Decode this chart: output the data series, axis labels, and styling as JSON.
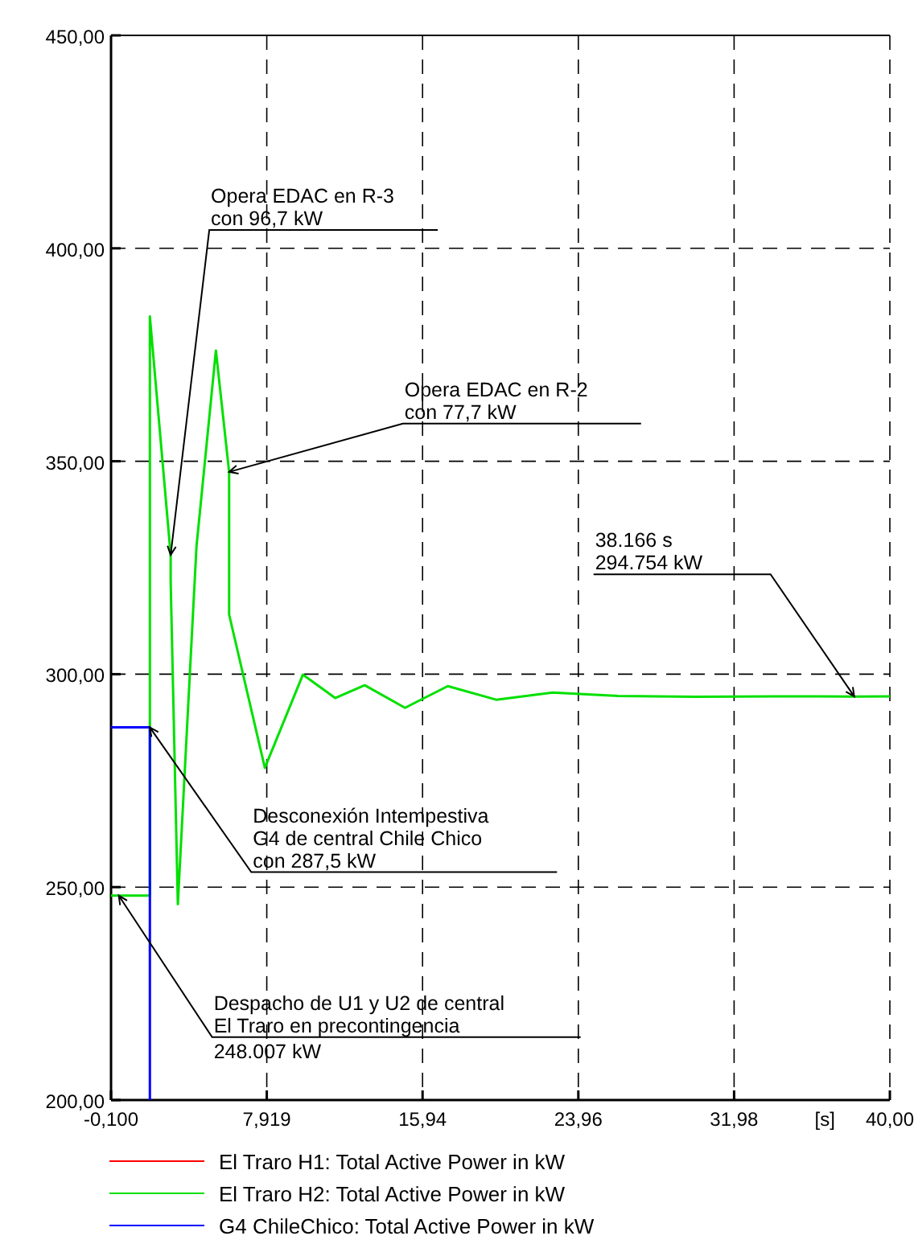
{
  "chart_data": {
    "type": "line",
    "xlabel": "[s]",
    "xlim": [
      -0.1,
      40
    ],
    "ylim": [
      200,
      450
    ],
    "xticks": [
      {
        "value": -0.1,
        "label": "-0,100"
      },
      {
        "value": 7.919,
        "label": "7,919"
      },
      {
        "value": 15.94,
        "label": "15,94"
      },
      {
        "value": 23.96,
        "label": "23,96"
      },
      {
        "value": 31.98,
        "label": "31,98"
      },
      {
        "value": 40,
        "label": "40,00"
      }
    ],
    "yticks": [
      {
        "value": 200,
        "label": "200,00"
      },
      {
        "value": 250,
        "label": "250,00"
      },
      {
        "value": 300,
        "label": "300,00"
      },
      {
        "value": 350,
        "label": "350,00"
      },
      {
        "value": 400,
        "label": "400,00"
      },
      {
        "value": 450,
        "label": "450,00"
      }
    ],
    "grid": true,
    "legend": "bottom",
    "marker": "none",
    "line_style": "solid",
    "series": [
      {
        "name": "El Traro H1: Total Active Power in kW",
        "color": "#ff0000"
      },
      {
        "name": "El Traro H2: Total Active Power in kW",
        "color": "#00e000",
        "x": [
          -0.1,
          1.9,
          1.9,
          2.97,
          2.97,
          3.34,
          4.3,
          5.3,
          5.98,
          5.98,
          7.82,
          9.78,
          11.44,
          12.96,
          15.04,
          17.24,
          19.73,
          22.63,
          26,
          30,
          34,
          38.166,
          40
        ],
        "values": [
          248,
          248,
          384,
          328,
          322,
          246,
          330,
          376,
          347.5,
          314,
          278,
          299.9,
          294.4,
          297.4,
          292.1,
          297.2,
          294,
          295.7,
          294.9,
          294.7,
          294.8,
          294.754,
          294.8
        ]
      },
      {
        "name": "G4 ChileChico: Total Active Power in kW",
        "color": "#0000ff",
        "x": [
          -0.1,
          1.9,
          1.9
        ],
        "values": [
          287.5,
          287.5,
          200
        ]
      }
    ],
    "annotations": [
      {
        "text": "Opera EDAC en R-3\ncon 96,7 kW",
        "x": 2.97,
        "y": 328
      },
      {
        "text": "Opera EDAC en R-2\ncon 77,7 kW",
        "x": 5.98,
        "y": 347.5
      },
      {
        "text": "38.166 s\n294.754 kW",
        "x": 38.166,
        "y": 294.754
      },
      {
        "text": "Desconexión Intempestiva\nG4 de central Chile Chico\ncon 287,5 kW",
        "x": 1.9,
        "y": 287.5
      },
      {
        "text": "Despacho de U1 y U2 de central\nEl Traro en precontingencia\n248.007 kW",
        "x": 0.3,
        "y": 248
      }
    ]
  }
}
